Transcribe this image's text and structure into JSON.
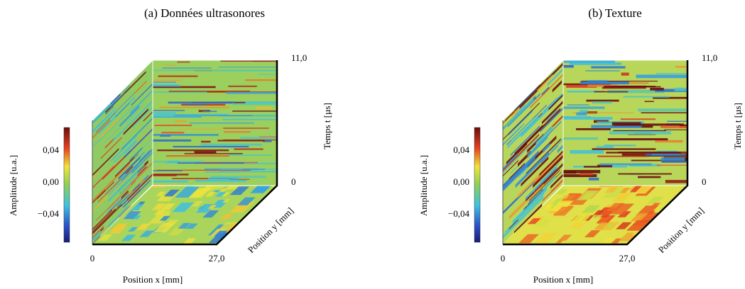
{
  "panels": [
    {
      "title": "(a) Données ultrasonores",
      "colorbar": {
        "label": "Amplitude [u.a.]",
        "ticks": [
          "0,04",
          "0,00",
          "−0,04"
        ]
      },
      "x_axis": {
        "label": "Position x [mm]",
        "ticks": [
          "0",
          "27,0"
        ]
      },
      "y_axis": {
        "label": "Position y [mm]"
      },
      "t_axis": {
        "label": "Temps t [µs]",
        "ticks": [
          "0",
          "11,0"
        ]
      }
    },
    {
      "title": "(b) Texture",
      "colorbar": {
        "label": "Amplitude [u.a.]",
        "ticks": [
          "0,04",
          "0,00",
          "−0,04"
        ]
      },
      "x_axis": {
        "label": "Position x [mm]",
        "ticks": [
          "0",
          "27,0"
        ]
      },
      "y_axis": {
        "label": "Position y [mm]"
      },
      "t_axis": {
        "label": "Temps t [µs]",
        "ticks": [
          "0",
          "11,0"
        ]
      }
    }
  ]
}
